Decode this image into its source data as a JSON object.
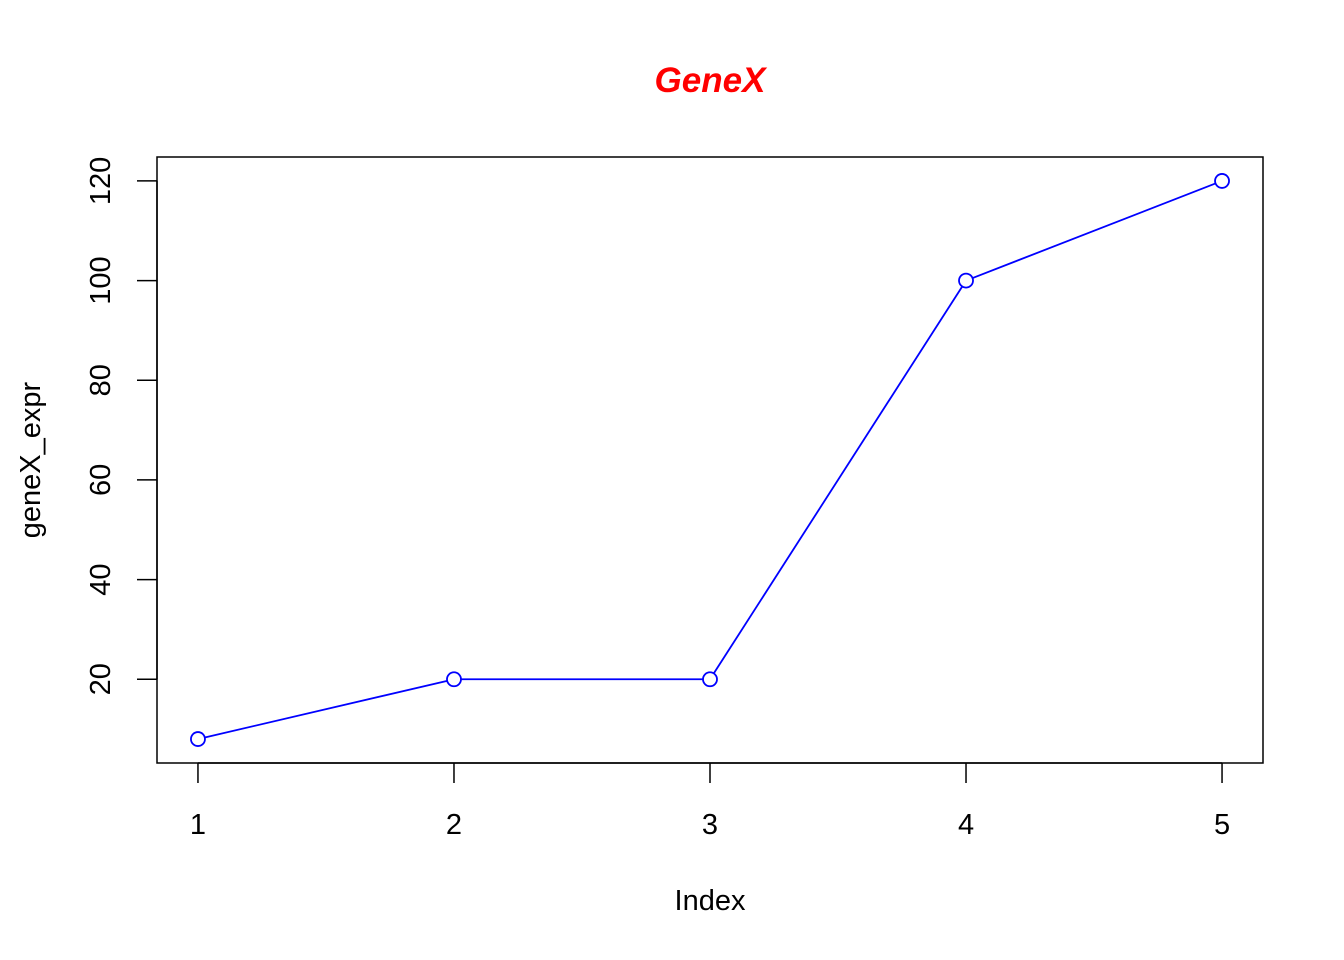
{
  "chart_data": {
    "type": "line",
    "title": "GeneX",
    "xlabel": "Index",
    "ylabel": "geneX_expr",
    "x": [
      1,
      2,
      3,
      4,
      5
    ],
    "y": [
      8,
      20,
      20,
      100,
      120
    ],
    "xticks": [
      "1",
      "2",
      "3",
      "4",
      "5"
    ],
    "yticks": [
      "20",
      "40",
      "60",
      "80",
      "100",
      "120"
    ],
    "xlim": [
      0.84,
      5.16
    ],
    "ylim": [
      3.2,
      124.8
    ],
    "markers": "open-circle",
    "grid": false,
    "colors": {
      "title": "#ff0000",
      "series": "#0000ff",
      "axes": "#000000"
    }
  }
}
